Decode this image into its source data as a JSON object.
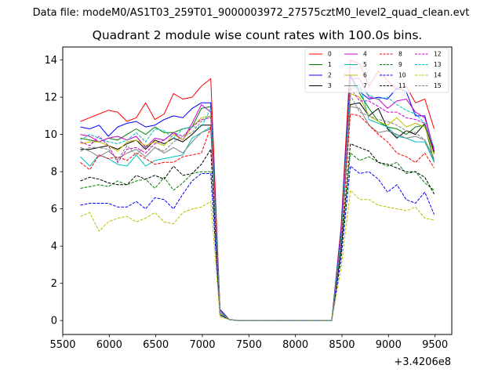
{
  "figure": {
    "suptitle": "Data file: modeM0/AS1T03_259T01_9000003972_27575cztM0_level2_quad_clean.evt"
  },
  "chart_data": {
    "type": "line",
    "title": "Quadrant 2 module wise count rates with 100.0s bins.",
    "xlabel": "",
    "ylabel": "",
    "x_offset_label": "+3.4206e8",
    "xlim": [
      5500,
      9680
    ],
    "ylim": [
      -0.75,
      14.7
    ],
    "x_ticks": [
      5500,
      6000,
      6500,
      7000,
      7500,
      8000,
      8500,
      9000,
      9500
    ],
    "y_ticks": [
      0,
      2,
      4,
      6,
      8,
      10,
      12,
      14
    ],
    "x_tick_labels": [
      "5500",
      "6000",
      "6500",
      "7000",
      "7500",
      "8000",
      "8500",
      "9000",
      "9500"
    ],
    "y_tick_labels": [
      "0",
      "2",
      "4",
      "6",
      "8",
      "10",
      "12",
      "14"
    ],
    "grid": false,
    "legend_position": "top-right",
    "x": [
      5690,
      5790,
      5890,
      5990,
      6090,
      6190,
      6290,
      6390,
      6490,
      6590,
      6690,
      6790,
      6890,
      6990,
      7090,
      7190,
      7290,
      7390,
      7490,
      7590,
      7690,
      7790,
      7890,
      7990,
      8090,
      8190,
      8290,
      8390,
      8490,
      8590,
      8690,
      8790,
      8890,
      8990,
      9090,
      9190,
      9290,
      9390,
      9490
    ],
    "series": [
      {
        "name": "0",
        "color": "#ff0000",
        "dash": "solid",
        "values": [
          10.7,
          10.9,
          11.1,
          11.3,
          11.2,
          10.7,
          10.9,
          11.7,
          10.8,
          11.1,
          12.2,
          11.9,
          12.0,
          12.6,
          13.0,
          0.6,
          0.05,
          0,
          0,
          0,
          0,
          0,
          0,
          0,
          0,
          0,
          0,
          0,
          5.0,
          14.0,
          13.8,
          12.6,
          13.4,
          12.9,
          12.4,
          12.6,
          11.7,
          11.9,
          10.3
        ]
      },
      {
        "name": "1",
        "color": "#008000",
        "dash": "solid",
        "values": [
          9.8,
          9.7,
          9.6,
          9.8,
          9.7,
          10.0,
          10.3,
          10.0,
          10.4,
          10.1,
          10.1,
          10.3,
          10.4,
          11.4,
          11.5,
          0.5,
          0.05,
          0,
          0,
          0,
          0,
          0,
          0,
          0,
          0,
          0,
          0,
          0,
          4.4,
          13.1,
          12.2,
          11.4,
          10.7,
          10.4,
          10.3,
          10.0,
          10.4,
          10.5,
          8.5
        ]
      },
      {
        "name": "2",
        "color": "#0000ff",
        "dash": "solid",
        "values": [
          10.4,
          10.3,
          10.5,
          9.9,
          10.4,
          10.6,
          10.7,
          10.4,
          10.5,
          10.8,
          11.0,
          10.9,
          11.4,
          11.7,
          11.7,
          0.6,
          0.05,
          0,
          0,
          0,
          0,
          0,
          0,
          0,
          0,
          0,
          0,
          0,
          4.8,
          13.2,
          12.3,
          11.9,
          12.0,
          11.9,
          12.5,
          12.3,
          11.0,
          11.0,
          9.1
        ]
      },
      {
        "name": "3",
        "color": "#000000",
        "dash": "solid",
        "values": [
          9.2,
          9.2,
          9.3,
          9.4,
          9.2,
          9.5,
          9.7,
          9.2,
          9.7,
          9.5,
          9.8,
          9.6,
          10.0,
          10.5,
          10.5,
          0.4,
          0.05,
          0,
          0,
          0,
          0,
          0,
          0,
          0,
          0,
          0,
          0,
          0,
          4.3,
          11.6,
          11.7,
          11.0,
          11.4,
          10.3,
          9.8,
          10.2,
          10.0,
          10.6,
          9.0
        ]
      },
      {
        "name": "4",
        "color": "#cc00cc",
        "dash": "solid",
        "values": [
          10.0,
          9.9,
          9.6,
          9.8,
          9.9,
          9.7,
          9.9,
          9.3,
          9.8,
          9.7,
          10.1,
          9.7,
          10.6,
          11.6,
          11.2,
          0.5,
          0.05,
          0,
          0,
          0,
          0,
          0,
          0,
          0,
          0,
          0,
          0,
          0,
          4.6,
          13.0,
          13.0,
          12.0,
          11.9,
          11.4,
          11.8,
          11.9,
          11.2,
          10.9,
          9.2
        ]
      },
      {
        "name": "5",
        "color": "#00bfbf",
        "dash": "solid",
        "values": [
          8.8,
          8.3,
          8.9,
          8.7,
          8.4,
          8.3,
          8.9,
          8.3,
          8.6,
          8.7,
          8.8,
          8.9,
          9.8,
          10.1,
          10.4,
          0.5,
          0.05,
          0,
          0,
          0,
          0,
          0,
          0,
          0,
          0,
          0,
          0,
          0,
          4.0,
          12.4,
          12.7,
          10.8,
          10.6,
          10.4,
          9.9,
          9.8,
          9.6,
          9.6,
          8.5
        ]
      },
      {
        "name": "6",
        "color": "#bfbf00",
        "dash": "solid",
        "values": [
          9.5,
          9.6,
          9.6,
          9.4,
          9.1,
          9.6,
          9.7,
          9.4,
          9.6,
          9.4,
          10.0,
          9.7,
          10.4,
          10.9,
          11.0,
          0.5,
          0.05,
          0,
          0,
          0,
          0,
          0,
          0,
          0,
          0,
          0,
          0,
          0,
          4.2,
          12.2,
          12.0,
          11.0,
          10.7,
          10.5,
          10.9,
          10.4,
          10.6,
          10.4,
          8.9
        ]
      },
      {
        "name": "7",
        "color": "#808080",
        "dash": "solid",
        "values": [
          9.3,
          9.1,
          8.8,
          9.1,
          8.7,
          9.0,
          9.2,
          8.8,
          9.3,
          9.0,
          9.3,
          9.0,
          9.6,
          10.1,
          10.3,
          0.5,
          0.05,
          0,
          0,
          0,
          0,
          0,
          0,
          0,
          0,
          0,
          0,
          0,
          4.1,
          11.5,
          11.4,
          10.5,
          10.1,
          10.2,
          10.0,
          9.8,
          9.9,
          9.7,
          8.7
        ]
      },
      {
        "name": "8",
        "color": "#ff0000",
        "dash": "dashed",
        "values": [
          8.5,
          8.1,
          8.9,
          8.7,
          8.8,
          8.6,
          9.0,
          8.7,
          8.4,
          8.5,
          8.5,
          8.8,
          8.9,
          9.0,
          10.4,
          0.4,
          0.05,
          0,
          0,
          0,
          0,
          0,
          0,
          0,
          0,
          0,
          0,
          0,
          4.0,
          11.1,
          11.0,
          10.5,
          10.0,
          9.6,
          9.0,
          8.8,
          8.5,
          9.0,
          8.2
        ]
      },
      {
        "name": "9",
        "color": "#008000",
        "dash": "dashed",
        "values": [
          7.1,
          7.2,
          7.3,
          7.2,
          7.5,
          7.3,
          7.5,
          7.6,
          7.1,
          7.7,
          7.0,
          7.4,
          7.9,
          8.0,
          8.0,
          0.3,
          0.05,
          0,
          0,
          0,
          0,
          0,
          0,
          0,
          0,
          0,
          0,
          0,
          3.6,
          9.0,
          8.6,
          8.8,
          8.5,
          8.3,
          8.5,
          7.9,
          8.0,
          7.4,
          7.0
        ]
      },
      {
        "name": "10",
        "color": "#0000ff",
        "dash": "dashed",
        "values": [
          6.2,
          6.3,
          6.3,
          6.3,
          6.1,
          6.1,
          6.4,
          6.0,
          6.6,
          6.5,
          6.0,
          6.8,
          7.5,
          7.9,
          7.9,
          0.3,
          0.05,
          0,
          0,
          0,
          0,
          0,
          0,
          0,
          0,
          0,
          0,
          0,
          3.3,
          8.3,
          7.9,
          8.0,
          7.6,
          6.9,
          7.3,
          6.5,
          6.3,
          6.9,
          5.7
        ]
      },
      {
        "name": "11",
        "color": "#000000",
        "dash": "dashed",
        "values": [
          7.5,
          7.7,
          7.6,
          7.4,
          7.3,
          7.3,
          7.8,
          7.6,
          7.8,
          7.6,
          8.3,
          7.8,
          7.9,
          8.4,
          9.2,
          0.3,
          0.05,
          0,
          0,
          0,
          0,
          0,
          0,
          0,
          0,
          0,
          0,
          0,
          3.8,
          9.5,
          9.3,
          9.1,
          8.5,
          8.4,
          8.2,
          8.0,
          8.0,
          7.7,
          6.8
        ]
      },
      {
        "name": "12",
        "color": "#cc00cc",
        "dash": "dashed",
        "values": [
          9.6,
          9.4,
          9.9,
          9.4,
          8.5,
          9.2,
          9.3,
          9.0,
          9.5,
          9.7,
          10.1,
          9.9,
          10.4,
          10.8,
          10.9,
          0.4,
          0.05,
          0,
          0,
          0,
          0,
          0,
          0,
          0,
          0,
          0,
          0,
          0,
          4.5,
          12.5,
          11.8,
          11.8,
          11.5,
          11.2,
          11.2,
          10.9,
          10.8,
          10.6,
          9.1
        ]
      },
      {
        "name": "13",
        "color": "#00bfbf",
        "dash": "dashed",
        "values": [
          9.7,
          10.0,
          9.8,
          9.6,
          9.5,
          9.7,
          10.1,
          9.6,
          10.3,
          10.2,
          9.8,
          10.3,
          10.4,
          10.4,
          11.4,
          0.4,
          0.05,
          0,
          0,
          0,
          0,
          0,
          0,
          0,
          0,
          0,
          0,
          0,
          4.5,
          12.8,
          12.5,
          12.1,
          11.9,
          12.0,
          11.6,
          11.3,
          11.1,
          10.6,
          9.3
        ]
      },
      {
        "name": "14",
        "color": "#bfbf00",
        "dash": "dashed",
        "values": [
          5.6,
          5.8,
          4.8,
          5.3,
          5.5,
          5.6,
          5.3,
          5.5,
          5.8,
          5.3,
          5.2,
          5.8,
          6.0,
          6.1,
          6.4,
          0.2,
          0.05,
          0,
          0,
          0,
          0,
          0,
          0,
          0,
          0,
          0,
          0,
          0,
          2.8,
          7.0,
          6.5,
          6.5,
          6.2,
          6.1,
          6.0,
          5.9,
          6.1,
          5.5,
          5.4
        ]
      },
      {
        "name": "15",
        "color": "#808080",
        "dash": "dashed",
        "values": [
          9.1,
          9.3,
          9.3,
          9.2,
          8.6,
          9.4,
          8.9,
          9.4,
          9.3,
          9.1,
          9.6,
          9.9,
          10.1,
          10.7,
          11.0,
          0.4,
          0.05,
          0,
          0,
          0,
          0,
          0,
          0,
          0,
          0,
          0,
          0,
          0,
          4.2,
          12.1,
          11.2,
          11.0,
          10.8,
          10.7,
          10.5,
          10.2,
          10.1,
          9.7,
          8.6
        ]
      }
    ]
  }
}
